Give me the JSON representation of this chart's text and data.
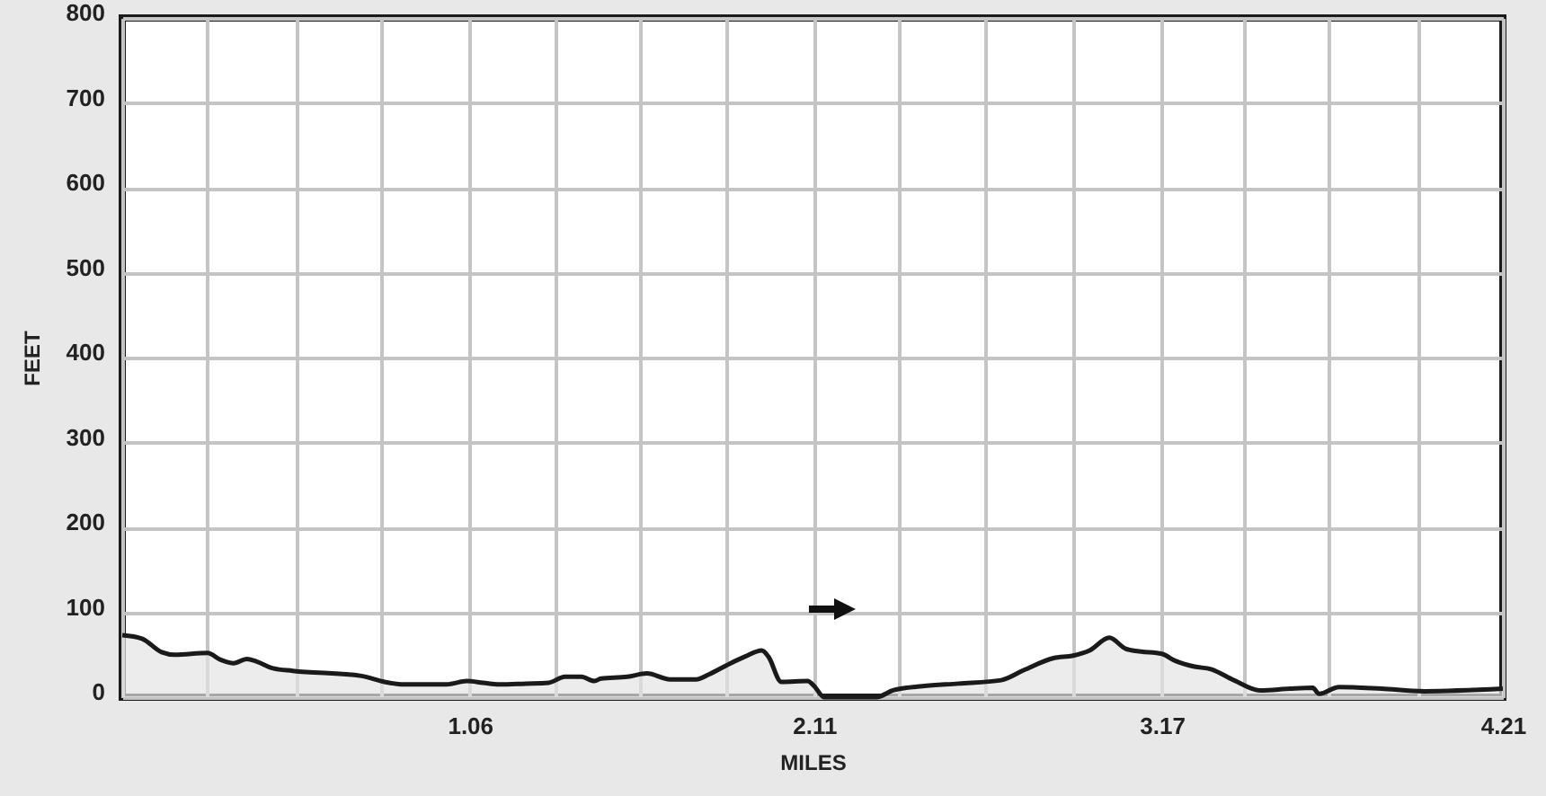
{
  "chart_data": {
    "type": "area",
    "xlabel": "MILES",
    "ylabel": "FEET",
    "x": [
      0,
      0.06,
      0.12,
      0.16,
      0.26,
      0.3,
      0.34,
      0.38,
      0.41,
      0.46,
      0.52,
      0.73,
      0.8,
      0.86,
      0.99,
      1.05,
      1.1,
      1.15,
      1.23,
      1.3,
      1.35,
      1.4,
      1.44,
      1.46,
      1.54,
      1.6,
      1.67,
      1.75,
      1.79,
      1.85,
      1.9,
      1.95,
      1.97,
      2.01,
      2.09,
      2.11,
      2.14,
      2.3,
      2.35,
      2.44,
      2.55,
      2.68,
      2.75,
      2.84,
      2.9,
      2.95,
      3.01,
      3.06,
      3.1,
      3.17,
      3.21,
      3.27,
      3.32,
      3.39,
      3.47,
      3.56,
      3.63,
      3.65,
      3.71,
      3.84,
      3.97,
      4.21
    ],
    "series": [
      {
        "color": "#e4e4e6",
        "values": [
          73,
          69,
          53,
          50,
          52,
          44,
          40,
          45,
          42,
          34,
          31,
          25,
          18,
          15,
          15,
          19,
          17,
          15,
          16,
          17,
          24,
          24,
          19,
          22,
          24,
          28,
          21,
          21,
          27,
          39,
          48,
          55,
          48,
          18,
          19,
          13,
          0,
          0,
          8,
          13,
          16,
          20,
          32,
          46,
          49,
          55,
          70,
          57,
          54,
          51,
          43,
          36,
          33,
          20,
          8,
          10,
          11,
          4,
          12,
          10,
          7,
          10
        ]
      }
    ],
    "xlim": [
      0,
      4.21
    ],
    "ylim": [
      0,
      800
    ],
    "xticks": [
      {
        "value": 0,
        "label": null
      },
      {
        "value": 0.26,
        "label": null
      },
      {
        "value": 0.53,
        "label": null
      },
      {
        "value": 0.79,
        "label": null
      },
      1.06,
      {
        "value": 1.32,
        "label": null
      },
      {
        "value": 1.58,
        "label": null
      },
      {
        "value": 1.84,
        "label": null
      },
      2.11,
      {
        "value": 2.37,
        "label": null
      },
      {
        "value": 2.63,
        "label": null
      },
      {
        "value": 2.9,
        "label": null
      },
      3.17,
      {
        "value": 3.42,
        "label": null
      },
      {
        "value": 3.68,
        "label": null
      },
      {
        "value": 3.95,
        "label": null
      },
      4.21
    ],
    "yticks": [
      0,
      100,
      200,
      300,
      400,
      500,
      600,
      700,
      800
    ],
    "grid": true
  }
}
